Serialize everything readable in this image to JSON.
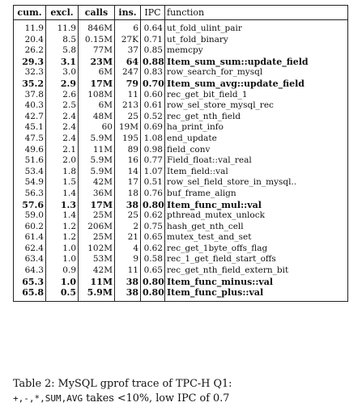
{
  "table": {
    "headers": {
      "cum": "cum.",
      "excl": "excl.",
      "calls": "calls",
      "ins": "ins.",
      "ipc": "IPC",
      "function": "function"
    },
    "rows": [
      {
        "cum": "11.9",
        "excl": "11.9",
        "calls": "846M",
        "ins": "6",
        "ipc": "0.64",
        "function": "ut_fold_ulint_pair",
        "bold": false
      },
      {
        "cum": "20.4",
        "excl": "8.5",
        "calls": "0.15M",
        "ins": "27K",
        "ipc": "0.71",
        "function": "ut_fold_binary",
        "bold": false
      },
      {
        "cum": "26.2",
        "excl": "5.8",
        "calls": "77M",
        "ins": "37",
        "ipc": "0.85",
        "function": "memcpy",
        "bold": false
      },
      {
        "cum": "29.3",
        "excl": "3.1",
        "calls": "23M",
        "ins": "64",
        "ipc": "0.88",
        "function": "Item_sum_sum::update_field",
        "bold": true
      },
      {
        "cum": "32.3",
        "excl": "3.0",
        "calls": "6M",
        "ins": "247",
        "ipc": "0.83",
        "function": "row_search_for_mysql",
        "bold": false
      },
      {
        "cum": "35.2",
        "excl": "2.9",
        "calls": "17M",
        "ins": "79",
        "ipc": "0.70",
        "function": "Item_sum_avg::update_field",
        "bold": true
      },
      {
        "cum": "37.8",
        "excl": "2.6",
        "calls": "108M",
        "ins": "11",
        "ipc": "0.60",
        "function": "rec_get_bit_field_1",
        "bold": false
      },
      {
        "cum": "40.3",
        "excl": "2.5",
        "calls": "6M",
        "ins": "213",
        "ipc": "0.61",
        "function": "row_sel_store_mysql_rec",
        "bold": false
      },
      {
        "cum": "42.7",
        "excl": "2.4",
        "calls": "48M",
        "ins": "25",
        "ipc": "0.52",
        "function": "rec_get_nth_field",
        "bold": false
      },
      {
        "cum": "45.1",
        "excl": "2.4",
        "calls": "60",
        "ins": "19M",
        "ipc": "0.69",
        "function": "ha_print_info",
        "bold": false
      },
      {
        "cum": "47.5",
        "excl": "2.4",
        "calls": "5.9M",
        "ins": "195",
        "ipc": "1.08",
        "function": "end_update",
        "bold": false
      },
      {
        "cum": "49.6",
        "excl": "2.1",
        "calls": "11M",
        "ins": "89",
        "ipc": "0.98",
        "function": "field_conv",
        "bold": false
      },
      {
        "cum": "51.6",
        "excl": "2.0",
        "calls": "5.9M",
        "ins": "16",
        "ipc": "0.77",
        "function": "Field_float::val_real",
        "bold": false
      },
      {
        "cum": "53.4",
        "excl": "1.8",
        "calls": "5.9M",
        "ins": "14",
        "ipc": "1.07",
        "function": "Item_field::val",
        "bold": false
      },
      {
        "cum": "54.9",
        "excl": "1.5",
        "calls": "42M",
        "ins": "17",
        "ipc": "0.51",
        "function": "row_sel_field_store_in_mysql..",
        "bold": false
      },
      {
        "cum": "56.3",
        "excl": "1.4",
        "calls": "36M",
        "ins": "18",
        "ipc": "0.76",
        "function": "buf_frame_align",
        "bold": false
      },
      {
        "cum": "57.6",
        "excl": "1.3",
        "calls": "17M",
        "ins": "38",
        "ipc": "0.80",
        "function": "Item_func_mul::val",
        "bold": true
      },
      {
        "cum": "59.0",
        "excl": "1.4",
        "calls": "25M",
        "ins": "25",
        "ipc": "0.62",
        "function": "pthread_mutex_unlock",
        "bold": false
      },
      {
        "cum": "60.2",
        "excl": "1.2",
        "calls": "206M",
        "ins": "2",
        "ipc": "0.75",
        "function": "hash_get_nth_cell",
        "bold": false
      },
      {
        "cum": "61.4",
        "excl": "1.2",
        "calls": "25M",
        "ins": "21",
        "ipc": "0.65",
        "function": "mutex_test_and_set",
        "bold": false
      },
      {
        "cum": "62.4",
        "excl": "1.0",
        "calls": "102M",
        "ins": "4",
        "ipc": "0.62",
        "function": "rec_get_1byte_offs_flag",
        "bold": false
      },
      {
        "cum": "63.4",
        "excl": "1.0",
        "calls": "53M",
        "ins": "9",
        "ipc": "0.58",
        "function": "rec_1_get_field_start_offs",
        "bold": false
      },
      {
        "cum": "64.3",
        "excl": "0.9",
        "calls": "42M",
        "ins": "11",
        "ipc": "0.65",
        "function": "rec_get_nth_field_extern_bit",
        "bold": false
      },
      {
        "cum": "65.3",
        "excl": "1.0",
        "calls": "11M",
        "ins": "38",
        "ipc": "0.80",
        "function": "Item_func_minus::val",
        "bold": true
      },
      {
        "cum": "65.8",
        "excl": "0.5",
        "calls": "5.9M",
        "ins": "38",
        "ipc": "0.80",
        "function": "Item_func_plus::val",
        "bold": true
      }
    ]
  },
  "caption": {
    "line1": "Table 2:  MySQL  gprof  trace  of  TPC-H  Q1:",
    "ops": "+,-,*,SUM,AVG",
    "line2_rest": " takes <10%, low IPC of 0.7"
  }
}
